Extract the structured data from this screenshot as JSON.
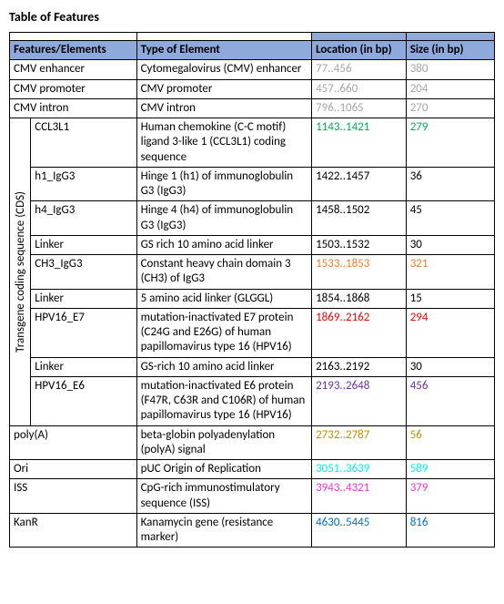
{
  "title": "Table of Features",
  "headers": {
    "features": "Features/Elements",
    "type": "Type of Element",
    "location": "Location (in bp)",
    "size": "Size (in bp)"
  },
  "vertLabel": "Transgene coding sequence (CDS)",
  "colors": {
    "gray": "#a6a6a6",
    "green": "#00b050",
    "black": "#000000",
    "orange": "#ed7d31",
    "red": "#ff0000",
    "purple": "#7030a0",
    "brown": "#bf8f00",
    "cyan": "#00f0f0",
    "magenta": "#ff33cc",
    "blue": "#0070c0"
  },
  "rows": [
    {
      "feat": "CMV enhancer",
      "type": "Cytomegalovirus (CMV) enhancer",
      "loc": "77..456",
      "size": "380",
      "color": "gray",
      "group": "top"
    },
    {
      "feat": "CMV promoter",
      "type": "CMV promoter",
      "loc": "457..660",
      "size": "204",
      "color": "gray",
      "group": "top"
    },
    {
      "feat": "CMV intron",
      "type": "CMV intron",
      "loc": "796..1065",
      "size": "270",
      "color": "gray",
      "group": "top"
    },
    {
      "feat": "CCL3L1",
      "type": "Human chemokine (C-C motif) ligand 3-like 1 (CCL3L1) coding sequence",
      "loc": "1143..1421",
      "size": "279",
      "color": "green",
      "group": "cds"
    },
    {
      "feat": "h1_IgG3",
      "type": "Hinge 1 (h1) of immunoglobulin G3 (IgG3)",
      "loc": "1422..1457",
      "size": "36",
      "color": "black",
      "group": "cds"
    },
    {
      "feat": "h4_IgG3",
      "type": "Hinge 4 (h4) of immunoglobulin G3 (IgG3)",
      "loc": "1458..1502",
      "size": "45",
      "color": "black",
      "group": "cds"
    },
    {
      "feat": "Linker",
      "type": "GS rich 10 amino acid linker",
      "loc": "1503..1532",
      "size": "30",
      "color": "black",
      "group": "cds"
    },
    {
      "feat": "CH3_IgG3",
      "type": "Constant heavy chain domain 3 (CH3) of IgG3",
      "loc": "1533..1853",
      "size": "321",
      "color": "orange",
      "group": "cds"
    },
    {
      "feat": "Linker",
      "type": "5 amino acid linker (GLGGL)",
      "loc": "1854..1868",
      "size": "15",
      "color": "black",
      "group": "cds"
    },
    {
      "feat": "HPV16_E7",
      "type": "mutation-inactivated E7 protein (C24G and E26G) of human papillomavirus type 16 (HPV16)",
      "loc": "1869..2162",
      "size": "294",
      "color": "red",
      "group": "cds"
    },
    {
      "feat": "Linker",
      "type": "GS-rich 10 amino acid linker",
      "loc": "2163..2192",
      "size": "30",
      "color": "black",
      "group": "cds"
    },
    {
      "feat": "HPV16_E6",
      "type": "mutation-inactivated E6 protein (F47R, C63R and C106R) of human papillomavirus type 16 (HPV16)",
      "loc": "2193..2648",
      "size": "456",
      "color": "purple",
      "group": "cds"
    },
    {
      "feat": "poly(A)",
      "type": "beta-globin polyadenylation (polyA) signal",
      "loc": "2732..2787",
      "size": "56",
      "color": "brown",
      "group": "bottom"
    },
    {
      "feat": "Ori",
      "type": "pUC Origin of Replication",
      "loc": "3051..3639",
      "size": "589",
      "color": "cyan",
      "group": "bottom"
    },
    {
      "feat": "ISS",
      "type": "CpG-rich immunostimulatory sequence (ISS)",
      "loc": "3943..4321",
      "size": "379",
      "color": "magenta",
      "group": "bottom"
    },
    {
      "feat": "KanR",
      "type": "Kanamycin gene (resistance marker)",
      "loc": "4630..5445",
      "size": "816",
      "color": "blue",
      "group": "bottom"
    }
  ]
}
